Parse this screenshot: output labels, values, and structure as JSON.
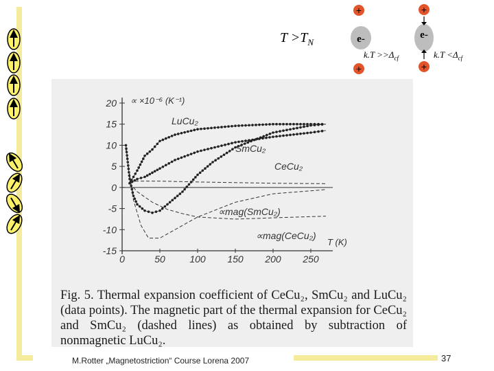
{
  "header": {
    "temp_base": "T >T",
    "temp_sub": "N",
    "kt_high_base": "k.T >>Δ",
    "kt_high_sub": "cf",
    "kt_low_base": "k.T <Δ",
    "kt_low_sub": "cf",
    "electron_label": "e-",
    "plus_sign": "+"
  },
  "figure": {
    "y_axis_label": "∝ ×10⁻⁶ (K⁻¹)",
    "x_axis_label": "T (K)",
    "y_ticks": [
      "20",
      "15",
      "10",
      "5",
      "0",
      "-5",
      "-10",
      "-15"
    ],
    "x_ticks": [
      "0",
      "50",
      "100",
      "150",
      "200",
      "250"
    ],
    "labels": {
      "lucu2": "LuCu₂",
      "smcu2": "SmCu₂",
      "cecu2": "CeCu₂",
      "mag_sm": "∝mag(SmCu₂)",
      "mag_ce": "∝mag(CeCu₂)"
    }
  },
  "chart_data": {
    "type": "line",
    "xlabel": "T (K)",
    "ylabel": "∝ ×10⁻⁶ (K⁻¹)",
    "xlim": [
      0,
      270
    ],
    "ylim": [
      -15,
      20
    ],
    "series": [
      {
        "name": "LuCu₂",
        "style": "points",
        "x": [
          10,
          20,
          30,
          40,
          50,
          70,
          100,
          150,
          200,
          250,
          270
        ],
        "y": [
          1,
          4,
          7.5,
          9,
          11,
          12.5,
          13.8,
          14.6,
          15,
          15,
          15
        ]
      },
      {
        "name": "SmCu₂",
        "style": "points",
        "x": [
          10,
          20,
          30,
          40,
          50,
          70,
          100,
          150,
          200,
          250,
          270
        ],
        "y": [
          1,
          2,
          2.5,
          3.5,
          4.5,
          6.5,
          8.5,
          10.7,
          12,
          13,
          13.5
        ]
      },
      {
        "name": "CeCu₂",
        "style": "points",
        "x": [
          5,
          10,
          15,
          20,
          30,
          40,
          50,
          60,
          80,
          100,
          120,
          150,
          200,
          250,
          270
        ],
        "y": [
          10,
          2,
          -2,
          -4,
          -5.5,
          -6,
          -5.5,
          -4,
          -1,
          3,
          6,
          9.5,
          13,
          14.7,
          15
        ]
      },
      {
        "name": "∝mag(SmCu₂)",
        "style": "dashed",
        "x": [
          10,
          20,
          40,
          60,
          80,
          100,
          150,
          200,
          270
        ],
        "y": [
          1,
          -1,
          -3.5,
          -5.2,
          -6.2,
          -7,
          -7.5,
          -7.2,
          -6.8
        ]
      },
      {
        "name": "∝mag(CeCu₂)",
        "style": "dashed",
        "x": [
          5,
          15,
          25,
          35,
          50,
          70,
          100,
          150,
          200,
          270
        ],
        "y": [
          9,
          -3,
          -9,
          -12,
          -12,
          -10,
          -7,
          -3.5,
          -1.5,
          -0.5
        ]
      },
      {
        "name": "",
        "style": "dashed",
        "x": [
          10,
          50,
          100,
          200,
          270
        ],
        "y": [
          1.5,
          1.5,
          1.3,
          1,
          0.9
        ]
      }
    ]
  },
  "caption": {
    "text": "Fig. 5. Thermal expansion coefficient of CeCu₂, SmCu₂ and LuCu₂ (data points). The magnetic part of the thermal expansion for CeCu₂ and SmCu₂ (dashed lines) as obtained by subtraction of nonmagnetic LuCu₂."
  },
  "footer": {
    "credit": "M.Rotter „Magnetostriction“ Course Lorena 2007",
    "page_number": "37"
  },
  "colors": {
    "accent_bar": "#f5eb9c",
    "arrow_fill": "#fdf16a",
    "charge_red": "#e2542a",
    "electron_grey": "#bdbdbd"
  }
}
